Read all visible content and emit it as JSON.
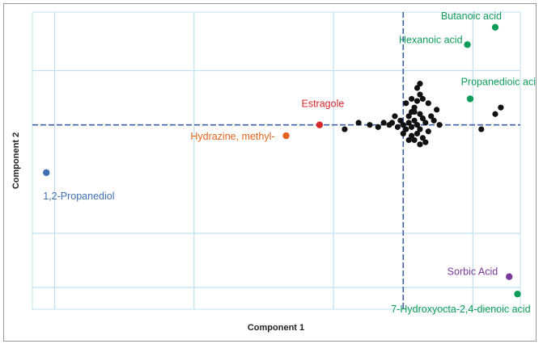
{
  "chart_data": {
    "type": "scatter",
    "title": "",
    "xlabel": "Component 1",
    "ylabel": "Component 2",
    "xlim": [
      -1.33,
      0.42
    ],
    "ylim": [
      -0.85,
      0.52
    ],
    "grid": true,
    "reference_lines": {
      "x": 0,
      "y": 0
    },
    "colors": {
      "grid": "#bfe0ee",
      "reference": "#3c5fa8",
      "cluster": "#111111",
      "green": "#0f9c58",
      "red": "#d8262b",
      "orange": "#e2651f",
      "blue": "#3f70b5",
      "purple": "#7a3a9a"
    },
    "labeled_points": [
      {
        "name": "Butanoic acid",
        "x": 0.33,
        "y": 0.45,
        "color": "green"
      },
      {
        "name": "Hexanoic acid",
        "x": 0.23,
        "y": 0.37,
        "color": "green"
      },
      {
        "name": "Propanedioic acid",
        "x": 0.24,
        "y": 0.12,
        "color": "green"
      },
      {
        "name": "Estragole",
        "x": -0.3,
        "y": 0.0,
        "color": "red"
      },
      {
        "name": "Hydrazine, methyl-",
        "x": -0.42,
        "y": -0.05,
        "color": "orange"
      },
      {
        "name": "1,2-Propanediol",
        "x": -1.28,
        "y": -0.22,
        "color": "blue"
      },
      {
        "name": "Sorbic Acid",
        "x": 0.38,
        "y": -0.7,
        "color": "purple"
      },
      {
        "name": "7-Hydroxyocta-2,4-dienoic acid",
        "x": 0.41,
        "y": -0.78,
        "color": "green"
      }
    ],
    "cluster_points": [
      [
        0.0,
        0.0
      ],
      [
        0.02,
        0.01
      ],
      [
        -0.01,
        0.02
      ],
      [
        0.03,
        -0.01
      ],
      [
        0.01,
        -0.02
      ],
      [
        0.04,
        0.02
      ],
      [
        0.05,
        0.0
      ],
      [
        0.02,
        0.04
      ],
      [
        0.03,
        0.06
      ],
      [
        0.04,
        0.08
      ],
      [
        0.05,
        0.11
      ],
      [
        0.06,
        0.14
      ],
      [
        0.05,
        0.17
      ],
      [
        0.06,
        0.19
      ],
      [
        0.04,
        0.06
      ],
      [
        0.06,
        0.05
      ],
      [
        0.07,
        0.03
      ],
      [
        0.06,
        -0.02
      ],
      [
        0.05,
        -0.04
      ],
      [
        0.03,
        -0.05
      ],
      [
        0.07,
        -0.06
      ],
      [
        0.08,
        -0.08
      ],
      [
        0.06,
        -0.09
      ],
      [
        0.02,
        -0.07
      ],
      [
        -0.02,
        -0.01
      ],
      [
        -0.04,
        0.01
      ],
      [
        -0.05,
        0.0
      ],
      [
        -0.07,
        0.01
      ],
      [
        -0.09,
        -0.01
      ],
      [
        -0.12,
        0.0
      ],
      [
        -0.16,
        0.01
      ],
      [
        -0.21,
        -0.02
      ],
      [
        0.08,
        0.01
      ],
      [
        0.1,
        0.04
      ],
      [
        0.12,
        0.07
      ],
      [
        0.09,
        0.1
      ],
      [
        0.11,
        0.02
      ],
      [
        0.13,
        0.0
      ],
      [
        0.09,
        -0.03
      ],
      [
        0.28,
        -0.02
      ],
      [
        0.33,
        0.05
      ],
      [
        0.35,
        0.08
      ],
      [
        0.01,
        0.1
      ],
      [
        0.03,
        0.12
      ],
      [
        0.0,
        -0.04
      ],
      [
        0.04,
        -0.07
      ],
      [
        -0.03,
        0.04
      ],
      [
        0.07,
        0.12
      ]
    ]
  }
}
